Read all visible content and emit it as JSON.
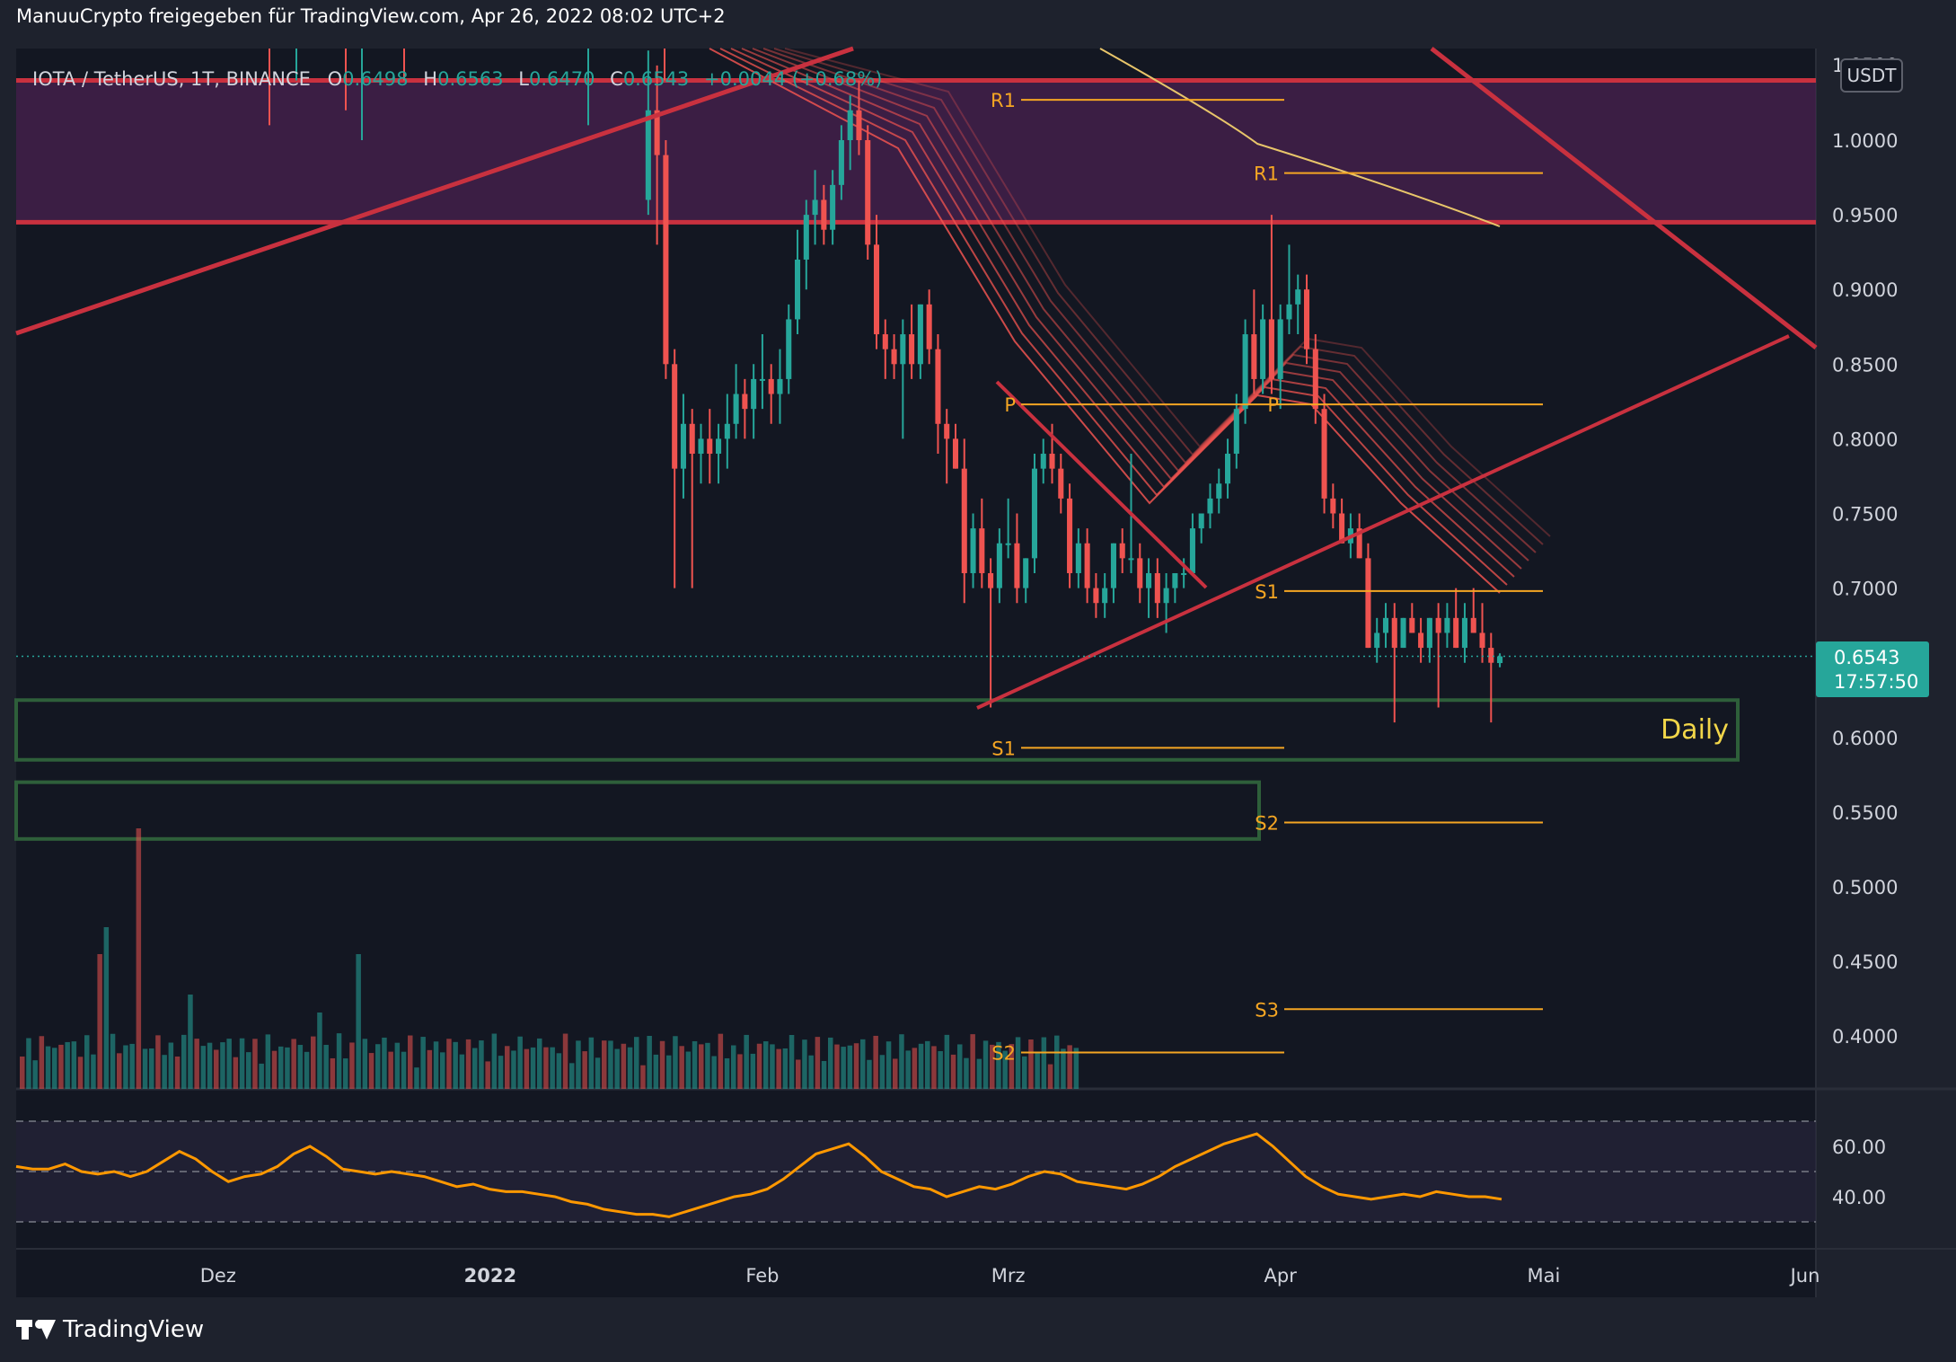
{
  "header": {
    "title": "ManuuCrypto freigegeben für TradingView.com, Apr 26, 2022 08:02 UTC+2"
  },
  "legend": {
    "symbol": "IOTA / TetherUS, 1T, BINANCE",
    "open_label": "O",
    "open": "0.6498",
    "high_label": "H",
    "high": "0.6563",
    "low_label": "L",
    "low": "0.6470",
    "close_label": "C",
    "close": "0.6543",
    "change": "+0.0044 (+0.68%)"
  },
  "price_axis": {
    "currency": "USDT",
    "ticks": [
      "1.0000",
      "0.9500",
      "0.9000",
      "0.8500",
      "0.8000",
      "0.7500",
      "0.7000",
      "0.6500",
      "0.6000",
      "0.5500",
      "0.5000",
      "0.4500",
      "0.4000"
    ],
    "top_partial": "1.0500",
    "last_price": "0.6543",
    "countdown": "17:57:50"
  },
  "rsi_axis": {
    "ticks": [
      "60.00",
      "40.00"
    ]
  },
  "time_axis": {
    "ticks": [
      "Dez",
      "2022",
      "Feb",
      "Mrz",
      "Apr",
      "Mai",
      "Jun"
    ]
  },
  "annotations": {
    "daily_zone_label": "Daily",
    "pivots_march": {
      "r1": "R1",
      "p": "P",
      "s1": "S1",
      "s2": "S2"
    },
    "pivots_april": {
      "r1": "R1",
      "p": "P",
      "s1": "S1",
      "s2": "S2",
      "s3": "S3"
    }
  },
  "footer": {
    "brand": "TradingView"
  },
  "colors": {
    "background": "#1e222d",
    "pane": "#131722",
    "up": "#26a69a",
    "down": "#ef5350",
    "trendline": "#c9313f",
    "resistance_zone": "#4a2250",
    "support_zone": "#2e5f3a",
    "pivot_line": "#f5a623",
    "ma_yellow": "#e8c56a",
    "rsi_line": "#ff9800",
    "rsi_band": "#2a2740",
    "last_price_badge": "#26a69a",
    "daily_label": "#f2d649"
  },
  "chart_data": {
    "type": "candlestick",
    "x_range": [
      "2021-11-08",
      "2022-06-01"
    ],
    "y_range": [
      0.365,
      1.06
    ],
    "price_levels": {
      "resistance_zone": [
        0.945,
        1.04
      ],
      "daily_support_zone": [
        0.585,
        0.625
      ],
      "weekly_support_zone": [
        0.532,
        0.57
      ]
    },
    "pivots_march": {
      "R1": 1.027,
      "P": 0.823,
      "S1": 0.593,
      "S2": 0.389
    },
    "pivots_april": {
      "R1": 0.978,
      "P": 0.823,
      "S1": 0.698,
      "S2": 0.543,
      "S3": 0.418
    },
    "candles": [
      {
        "date": "2022-01-19",
        "o": 0.96,
        "h": 1.06,
        "l": 0.95,
        "c": 1.02
      },
      {
        "date": "2022-01-20",
        "o": 1.02,
        "h": 1.05,
        "l": 0.93,
        "c": 0.99
      },
      {
        "date": "2022-01-21",
        "o": 0.99,
        "h": 1.0,
        "l": 0.84,
        "c": 0.85
      },
      {
        "date": "2022-01-22",
        "o": 0.85,
        "h": 0.86,
        "l": 0.7,
        "c": 0.78
      },
      {
        "date": "2022-01-23",
        "o": 0.78,
        "h": 0.83,
        "l": 0.76,
        "c": 0.81
      },
      {
        "date": "2022-01-24",
        "o": 0.81,
        "h": 0.82,
        "l": 0.7,
        "c": 0.79
      },
      {
        "date": "2022-01-25",
        "o": 0.79,
        "h": 0.81,
        "l": 0.77,
        "c": 0.8
      },
      {
        "date": "2022-01-26",
        "o": 0.8,
        "h": 0.82,
        "l": 0.77,
        "c": 0.79
      },
      {
        "date": "2022-01-27",
        "o": 0.79,
        "h": 0.81,
        "l": 0.77,
        "c": 0.8
      },
      {
        "date": "2022-01-28",
        "o": 0.8,
        "h": 0.83,
        "l": 0.78,
        "c": 0.81
      },
      {
        "date": "2022-01-29",
        "o": 0.81,
        "h": 0.85,
        "l": 0.8,
        "c": 0.83
      },
      {
        "date": "2022-01-30",
        "o": 0.83,
        "h": 0.84,
        "l": 0.8,
        "c": 0.82
      },
      {
        "date": "2022-01-31",
        "o": 0.82,
        "h": 0.85,
        "l": 0.8,
        "c": 0.84
      },
      {
        "date": "2022-02-01",
        "o": 0.84,
        "h": 0.87,
        "l": 0.82,
        "c": 0.84
      },
      {
        "date": "2022-02-02",
        "o": 0.84,
        "h": 0.85,
        "l": 0.81,
        "c": 0.83
      },
      {
        "date": "2022-02-03",
        "o": 0.83,
        "h": 0.86,
        "l": 0.81,
        "c": 0.84
      },
      {
        "date": "2022-02-04",
        "o": 0.84,
        "h": 0.89,
        "l": 0.83,
        "c": 0.88
      },
      {
        "date": "2022-02-05",
        "o": 0.88,
        "h": 0.94,
        "l": 0.87,
        "c": 0.92
      },
      {
        "date": "2022-02-06",
        "o": 0.92,
        "h": 0.96,
        "l": 0.9,
        "c": 0.95
      },
      {
        "date": "2022-02-07",
        "o": 0.95,
        "h": 0.98,
        "l": 0.93,
        "c": 0.96
      },
      {
        "date": "2022-02-08",
        "o": 0.96,
        "h": 0.97,
        "l": 0.93,
        "c": 0.94
      },
      {
        "date": "2022-02-09",
        "o": 0.94,
        "h": 0.98,
        "l": 0.93,
        "c": 0.97
      },
      {
        "date": "2022-02-10",
        "o": 0.97,
        "h": 1.01,
        "l": 0.96,
        "c": 1.0
      },
      {
        "date": "2022-02-11",
        "o": 1.0,
        "h": 1.03,
        "l": 0.98,
        "c": 1.02
      },
      {
        "date": "2022-02-12",
        "o": 1.02,
        "h": 1.04,
        "l": 0.99,
        "c": 1.0
      },
      {
        "date": "2022-02-13",
        "o": 1.0,
        "h": 1.01,
        "l": 0.92,
        "c": 0.93
      },
      {
        "date": "2022-02-14",
        "o": 0.93,
        "h": 0.95,
        "l": 0.86,
        "c": 0.87
      },
      {
        "date": "2022-02-15",
        "o": 0.87,
        "h": 0.88,
        "l": 0.84,
        "c": 0.86
      },
      {
        "date": "2022-02-16",
        "o": 0.86,
        "h": 0.87,
        "l": 0.84,
        "c": 0.85
      },
      {
        "date": "2022-02-17",
        "o": 0.85,
        "h": 0.88,
        "l": 0.8,
        "c": 0.87
      },
      {
        "date": "2022-02-18",
        "o": 0.87,
        "h": 0.89,
        "l": 0.84,
        "c": 0.85
      },
      {
        "date": "2022-02-19",
        "o": 0.85,
        "h": 0.89,
        "l": 0.84,
        "c": 0.89
      },
      {
        "date": "2022-02-20",
        "o": 0.89,
        "h": 0.9,
        "l": 0.85,
        "c": 0.86
      },
      {
        "date": "2022-02-21",
        "o": 0.86,
        "h": 0.87,
        "l": 0.79,
        "c": 0.81
      },
      {
        "date": "2022-02-22",
        "o": 0.81,
        "h": 0.82,
        "l": 0.77,
        "c": 0.8
      },
      {
        "date": "2022-02-23",
        "o": 0.8,
        "h": 0.81,
        "l": 0.78,
        "c": 0.78
      },
      {
        "date": "2022-02-24",
        "o": 0.78,
        "h": 0.8,
        "l": 0.69,
        "c": 0.71
      },
      {
        "date": "2022-02-25",
        "o": 0.71,
        "h": 0.75,
        "l": 0.7,
        "c": 0.74
      },
      {
        "date": "2022-02-26",
        "o": 0.74,
        "h": 0.76,
        "l": 0.7,
        "c": 0.71
      },
      {
        "date": "2022-02-27",
        "o": 0.71,
        "h": 0.72,
        "l": 0.62,
        "c": 0.7
      },
      {
        "date": "2022-02-28",
        "o": 0.7,
        "h": 0.74,
        "l": 0.69,
        "c": 0.73
      },
      {
        "date": "2022-03-01",
        "o": 0.73,
        "h": 0.76,
        "l": 0.72,
        "c": 0.73
      },
      {
        "date": "2022-03-02",
        "o": 0.73,
        "h": 0.75,
        "l": 0.69,
        "c": 0.7
      },
      {
        "date": "2022-03-03",
        "o": 0.7,
        "h": 0.72,
        "l": 0.69,
        "c": 0.72
      },
      {
        "date": "2022-03-04",
        "o": 0.72,
        "h": 0.79,
        "l": 0.71,
        "c": 0.78
      },
      {
        "date": "2022-03-05",
        "o": 0.78,
        "h": 0.8,
        "l": 0.77,
        "c": 0.79
      },
      {
        "date": "2022-03-06",
        "o": 0.79,
        "h": 0.81,
        "l": 0.77,
        "c": 0.78
      },
      {
        "date": "2022-03-07",
        "o": 0.78,
        "h": 0.79,
        "l": 0.75,
        "c": 0.76
      },
      {
        "date": "2022-03-08",
        "o": 0.76,
        "h": 0.77,
        "l": 0.7,
        "c": 0.71
      },
      {
        "date": "2022-03-09",
        "o": 0.71,
        "h": 0.74,
        "l": 0.7,
        "c": 0.73
      },
      {
        "date": "2022-03-10",
        "o": 0.73,
        "h": 0.74,
        "l": 0.69,
        "c": 0.7
      },
      {
        "date": "2022-03-11",
        "o": 0.7,
        "h": 0.71,
        "l": 0.68,
        "c": 0.69
      },
      {
        "date": "2022-03-12",
        "o": 0.69,
        "h": 0.71,
        "l": 0.68,
        "c": 0.7
      },
      {
        "date": "2022-03-13",
        "o": 0.7,
        "h": 0.73,
        "l": 0.69,
        "c": 0.73
      },
      {
        "date": "2022-03-14",
        "o": 0.73,
        "h": 0.74,
        "l": 0.71,
        "c": 0.72
      },
      {
        "date": "2022-03-15",
        "o": 0.72,
        "h": 0.79,
        "l": 0.71,
        "c": 0.72
      },
      {
        "date": "2022-03-16",
        "o": 0.72,
        "h": 0.73,
        "l": 0.69,
        "c": 0.7
      },
      {
        "date": "2022-03-17",
        "o": 0.7,
        "h": 0.72,
        "l": 0.68,
        "c": 0.71
      },
      {
        "date": "2022-03-18",
        "o": 0.71,
        "h": 0.72,
        "l": 0.68,
        "c": 0.69
      },
      {
        "date": "2022-03-19",
        "o": 0.69,
        "h": 0.71,
        "l": 0.67,
        "c": 0.7
      },
      {
        "date": "2022-03-20",
        "o": 0.7,
        "h": 0.71,
        "l": 0.69,
        "c": 0.71
      },
      {
        "date": "2022-03-21",
        "o": 0.71,
        "h": 0.72,
        "l": 0.7,
        "c": 0.71
      },
      {
        "date": "2022-03-22",
        "o": 0.71,
        "h": 0.75,
        "l": 0.71,
        "c": 0.74
      },
      {
        "date": "2022-03-23",
        "o": 0.74,
        "h": 0.75,
        "l": 0.73,
        "c": 0.75
      },
      {
        "date": "2022-03-24",
        "o": 0.75,
        "h": 0.77,
        "l": 0.74,
        "c": 0.76
      },
      {
        "date": "2022-03-25",
        "o": 0.76,
        "h": 0.78,
        "l": 0.75,
        "c": 0.77
      },
      {
        "date": "2022-03-26",
        "o": 0.77,
        "h": 0.8,
        "l": 0.76,
        "c": 0.79
      },
      {
        "date": "2022-03-27",
        "o": 0.79,
        "h": 0.83,
        "l": 0.78,
        "c": 0.82
      },
      {
        "date": "2022-03-28",
        "o": 0.82,
        "h": 0.88,
        "l": 0.81,
        "c": 0.87
      },
      {
        "date": "2022-03-29",
        "o": 0.87,
        "h": 0.9,
        "l": 0.83,
        "c": 0.84
      },
      {
        "date": "2022-03-30",
        "o": 0.84,
        "h": 0.89,
        "l": 0.83,
        "c": 0.88
      },
      {
        "date": "2022-03-31",
        "o": 0.88,
        "h": 0.95,
        "l": 0.83,
        "c": 0.84
      },
      {
        "date": "2022-04-01",
        "o": 0.84,
        "h": 0.89,
        "l": 0.82,
        "c": 0.88
      },
      {
        "date": "2022-04-02",
        "o": 0.88,
        "h": 0.93,
        "l": 0.87,
        "c": 0.89
      },
      {
        "date": "2022-04-03",
        "o": 0.89,
        "h": 0.91,
        "l": 0.87,
        "c": 0.9
      },
      {
        "date": "2022-04-04",
        "o": 0.9,
        "h": 0.91,
        "l": 0.85,
        "c": 0.86
      },
      {
        "date": "2022-04-05",
        "o": 0.86,
        "h": 0.87,
        "l": 0.81,
        "c": 0.82
      },
      {
        "date": "2022-04-06",
        "o": 0.82,
        "h": 0.83,
        "l": 0.75,
        "c": 0.76
      },
      {
        "date": "2022-04-07",
        "o": 0.76,
        "h": 0.77,
        "l": 0.74,
        "c": 0.75
      },
      {
        "date": "2022-04-08",
        "o": 0.75,
        "h": 0.76,
        "l": 0.73,
        "c": 0.73
      },
      {
        "date": "2022-04-09",
        "o": 0.73,
        "h": 0.75,
        "l": 0.72,
        "c": 0.74
      },
      {
        "date": "2022-04-10",
        "o": 0.74,
        "h": 0.75,
        "l": 0.72,
        "c": 0.72
      },
      {
        "date": "2022-04-11",
        "o": 0.72,
        "h": 0.73,
        "l": 0.66,
        "c": 0.66
      },
      {
        "date": "2022-04-12",
        "o": 0.66,
        "h": 0.68,
        "l": 0.65,
        "c": 0.67
      },
      {
        "date": "2022-04-13",
        "o": 0.67,
        "h": 0.69,
        "l": 0.66,
        "c": 0.68
      },
      {
        "date": "2022-04-14",
        "o": 0.68,
        "h": 0.69,
        "l": 0.61,
        "c": 0.66
      },
      {
        "date": "2022-04-15",
        "o": 0.66,
        "h": 0.68,
        "l": 0.66,
        "c": 0.68
      },
      {
        "date": "2022-04-16",
        "o": 0.68,
        "h": 0.69,
        "l": 0.67,
        "c": 0.67
      },
      {
        "date": "2022-04-17",
        "o": 0.67,
        "h": 0.68,
        "l": 0.65,
        "c": 0.66
      },
      {
        "date": "2022-04-18",
        "o": 0.66,
        "h": 0.68,
        "l": 0.65,
        "c": 0.68
      },
      {
        "date": "2022-04-19",
        "o": 0.68,
        "h": 0.69,
        "l": 0.62,
        "c": 0.67
      },
      {
        "date": "2022-04-20",
        "o": 0.67,
        "h": 0.69,
        "l": 0.66,
        "c": 0.68
      },
      {
        "date": "2022-04-21",
        "o": 0.68,
        "h": 0.7,
        "l": 0.66,
        "c": 0.66
      },
      {
        "date": "2022-04-22",
        "o": 0.66,
        "h": 0.69,
        "l": 0.65,
        "c": 0.68
      },
      {
        "date": "2022-04-23",
        "o": 0.68,
        "h": 0.7,
        "l": 0.67,
        "c": 0.67
      },
      {
        "date": "2022-04-24",
        "o": 0.67,
        "h": 0.69,
        "l": 0.65,
        "c": 0.66
      },
      {
        "date": "2022-04-25",
        "o": 0.66,
        "h": 0.67,
        "l": 0.61,
        "c": 0.65
      },
      {
        "date": "2022-04-26",
        "o": 0.6498,
        "h": 0.6563,
        "l": 0.647,
        "c": 0.6543
      }
    ],
    "rsi": {
      "period": "daily",
      "y_range": [
        20,
        80
      ],
      "levels": [
        70,
        30
      ],
      "values": [
        52,
        51,
        51,
        53,
        50,
        49,
        50,
        48,
        50,
        54,
        58,
        55,
        50,
        46,
        48,
        49,
        52,
        57,
        60,
        56,
        51,
        50,
        49,
        50,
        49,
        48,
        46,
        44,
        45,
        43,
        42,
        42,
        41,
        40,
        38,
        37,
        35,
        34,
        33,
        33,
        32,
        34,
        36,
        38,
        40,
        41,
        43,
        47,
        52,
        57,
        59,
        61,
        56,
        50,
        47,
        44,
        43,
        40,
        42,
        44,
        43,
        45,
        48,
        50,
        49,
        46,
        45,
        44,
        43,
        45,
        48,
        52,
        55,
        58,
        61,
        63,
        65,
        60,
        54,
        48,
        44,
        41,
        40,
        39,
        40,
        41,
        40,
        42,
        41,
        40,
        40,
        39
      ]
    },
    "volume_shown": true
  }
}
